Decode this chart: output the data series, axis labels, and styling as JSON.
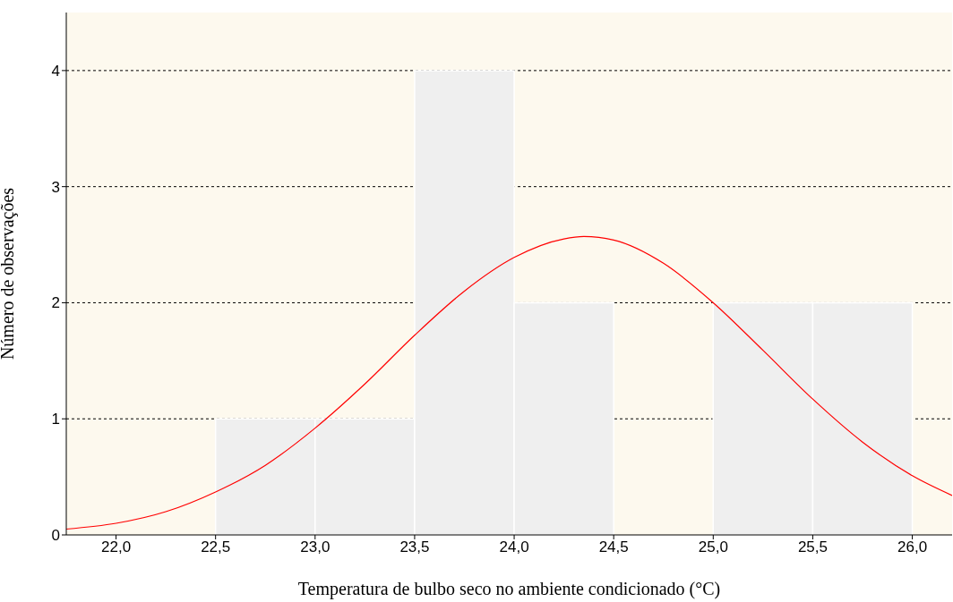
{
  "chart_data": {
    "type": "histogram",
    "xlabel": "Temperatura de bulbo seco no ambiente condicionado (°C)",
    "ylabel": "Número de observações",
    "bins": [
      22.5,
      23,
      23.5,
      24,
      24.5,
      25,
      25.5,
      26
    ],
    "values": [
      1,
      1,
      4,
      2,
      0,
      2,
      2
    ],
    "color": "#efefef",
    "series": [
      {
        "type": "line",
        "color": "#ff0000",
        "x": [
          21.75,
          22.0,
          22.25,
          22.5,
          22.75,
          23.0,
          23.25,
          23.5,
          23.75,
          24.0,
          24.25,
          24.35,
          24.5,
          24.75,
          25.0,
          25.25,
          25.5,
          25.75,
          26.0,
          26.2
        ],
        "values": [
          0.05,
          0.1,
          0.2,
          0.37,
          0.6,
          0.92,
          1.3,
          1.72,
          2.1,
          2.39,
          2.55,
          2.57,
          2.54,
          2.34,
          2.0,
          1.59,
          1.17,
          0.8,
          0.51,
          0.34
        ]
      }
    ],
    "xlim": [
      21.75,
      26.2
    ],
    "ylim": [
      0,
      4.5
    ],
    "xticks": [
      {
        "value": 22,
        "label": "22,0"
      },
      {
        "value": 22.5,
        "label": "22,5"
      },
      {
        "value": 23,
        "label": "23,0"
      },
      {
        "value": 23.5,
        "label": "23,5"
      },
      {
        "value": 24,
        "label": "24,0"
      },
      {
        "value": 24.5,
        "label": "24,5"
      },
      {
        "value": 25,
        "label": "25,0"
      },
      {
        "value": 25.5,
        "label": "25,5"
      },
      {
        "value": 26,
        "label": "26,0"
      }
    ],
    "yticks": [
      0,
      1,
      2,
      3,
      4
    ],
    "grid": "y",
    "marker": "none"
  }
}
